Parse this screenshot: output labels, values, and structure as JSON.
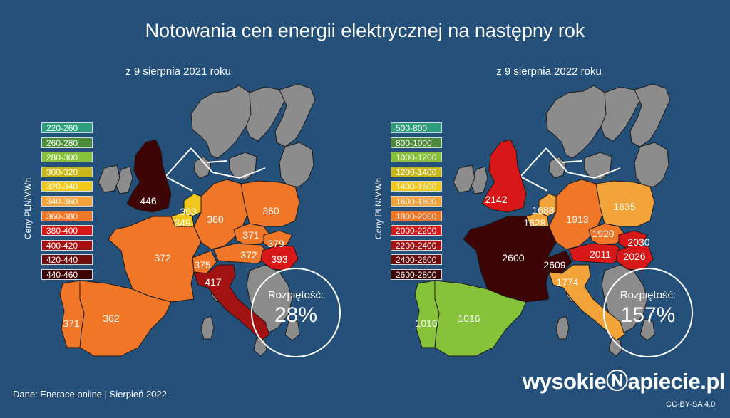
{
  "title": "Notowania cen energii elektrycznej na następny rok",
  "panels": [
    {
      "subtitle": "z 9 sierpnia 2021 roku",
      "axis_label": "Ceny PLN/MWh",
      "legend": [
        {
          "label": "220-260",
          "color": "#2e9e7e"
        },
        {
          "label": "260-280",
          "color": "#4d8a3a"
        },
        {
          "label": "280-300",
          "color": "#86c23a"
        },
        {
          "label": "300-320",
          "color": "#c8b61a"
        },
        {
          "label": "320-340",
          "color": "#f2c81c"
        },
        {
          "label": "340-360",
          "color": "#f2a43a"
        },
        {
          "label": "360-380",
          "color": "#f07628"
        },
        {
          "label": "380-400",
          "color": "#d81818"
        },
        {
          "label": "400-420",
          "color": "#a31212"
        },
        {
          "label": "420-440",
          "color": "#6e0a0a"
        },
        {
          "label": "440-460",
          "color": "#3d0505"
        }
      ],
      "values": {
        "uk": "446",
        "nl": "363",
        "be": "349",
        "de": "360",
        "pl": "360",
        "fr": "372",
        "cz": "371",
        "sk": "379",
        "at": "372",
        "hu": "393",
        "ch": "375",
        "it": "417",
        "es": "362",
        "pt": "371"
      },
      "spread_label": "Rozpiętość:",
      "spread": "28%"
    },
    {
      "subtitle": "z 9 sierpnia 2022 roku",
      "axis_label": "Ceny PLN/MWh",
      "legend": [
        {
          "label": "500-800",
          "color": "#2e9e7e"
        },
        {
          "label": "800-1000",
          "color": "#4d8a3a"
        },
        {
          "label": "1000-1200",
          "color": "#86c23a"
        },
        {
          "label": "1200-1400",
          "color": "#c8b61a"
        },
        {
          "label": "1400-1600",
          "color": "#f2c81c"
        },
        {
          "label": "1600-1800",
          "color": "#f2a43a"
        },
        {
          "label": "1800-2000",
          "color": "#f07628"
        },
        {
          "label": "2000-2200",
          "color": "#d81818"
        },
        {
          "label": "2200-2400",
          "color": "#a31212"
        },
        {
          "label": "2400-2600",
          "color": "#6e0a0a"
        },
        {
          "label": "2600-2800",
          "color": "#3d0505"
        }
      ],
      "values": {
        "uk": "2142",
        "nl": "1688",
        "be": "1628",
        "de": "1913",
        "pl": "1635",
        "fr": "2600",
        "cz": "1920",
        "sk": "2030",
        "at": "2011",
        "hu": "2026",
        "ch": "2609",
        "it": "1774",
        "es": "1016",
        "pt": "1016"
      },
      "spread_label": "Rozpiętość:",
      "spread": "157%"
    }
  ],
  "colors": {
    "background": "#24507a",
    "nondata": "#8c8c8c"
  },
  "source": "Dane: Enerace.online |  Sierpień 2022",
  "brand": "wysokieⓃapiecie.pl",
  "license": "CC-BY-SA 4.0"
}
